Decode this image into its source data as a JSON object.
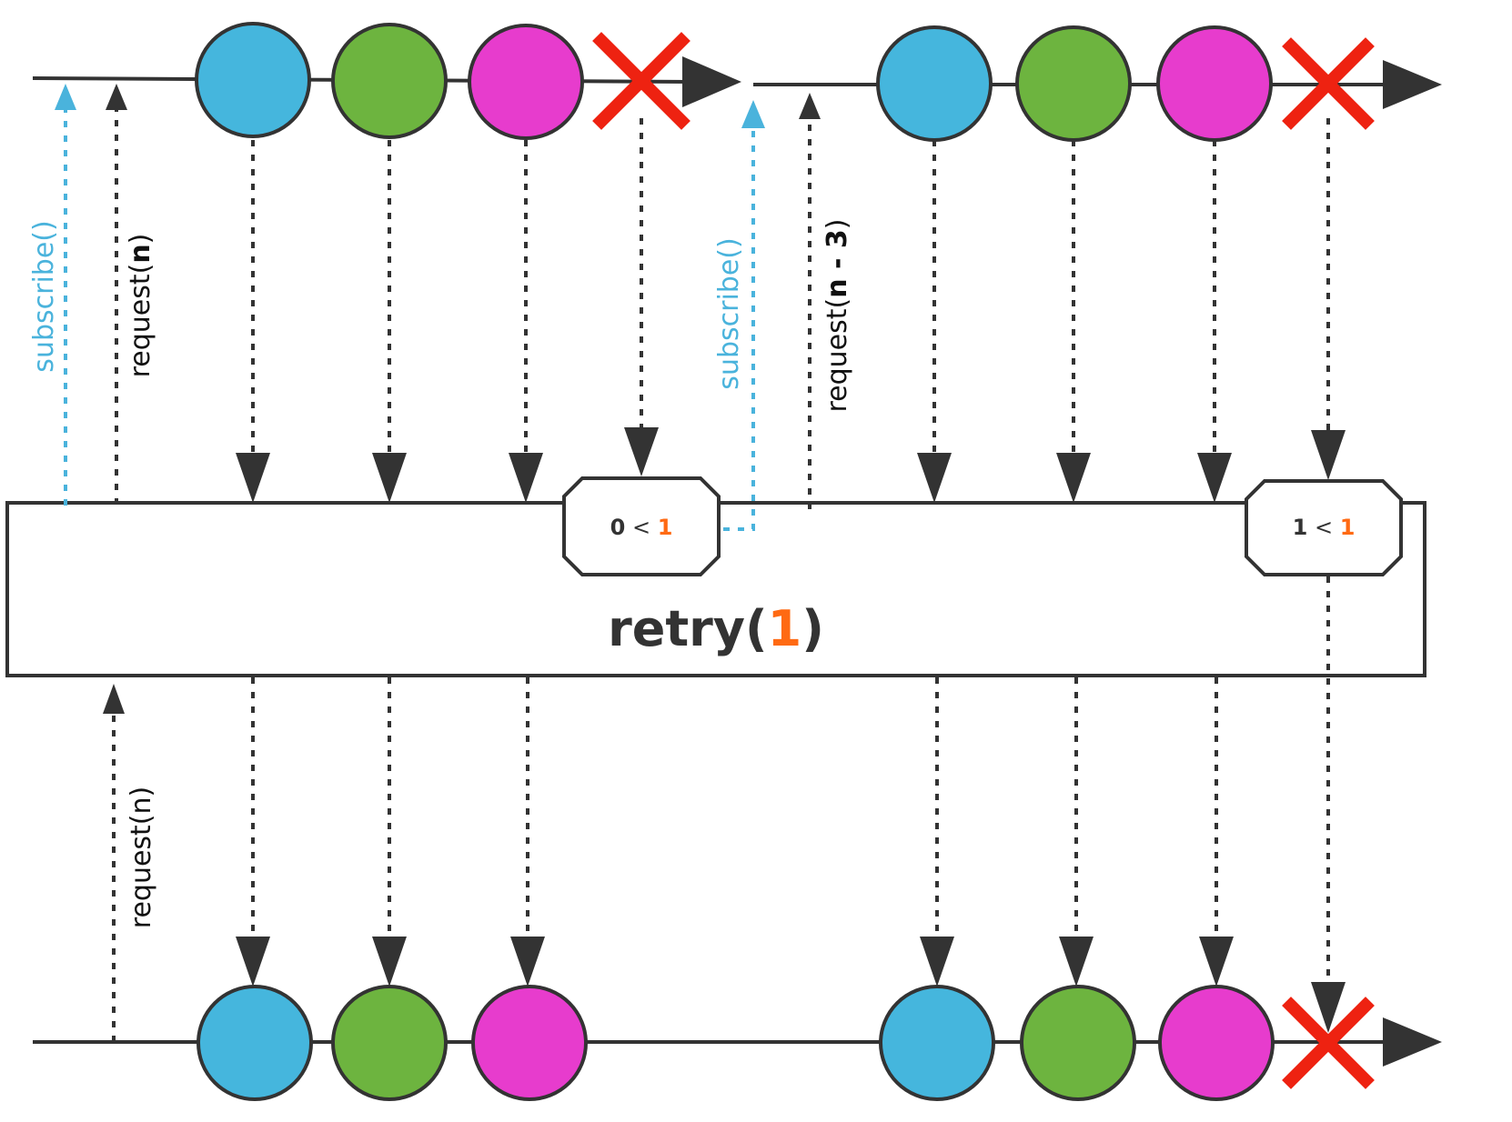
{
  "operator": {
    "name": "retry",
    "open": "(",
    "arg": "1",
    "close": ")"
  },
  "signals": {
    "subscribe_1": "subscribe()",
    "request_1_prefix": "request(",
    "request_1_arg": "n",
    "request_1_suffix": ")",
    "subscribe_2": "subscribe()",
    "request_2_prefix": "request(",
    "request_2_arg": "n - 3",
    "request_2_suffix": ")",
    "request_out": "request(n)"
  },
  "badges": [
    {
      "left": "0",
      "op": "<",
      "right": "1"
    },
    {
      "left": "1",
      "op": "<",
      "right": "1"
    }
  ],
  "colors": {
    "line": "#333333",
    "subscribe": "#4ab3dc",
    "blue": "#45b6dd",
    "green": "#6db43f",
    "magenta": "#e73ccd",
    "error": "#ee2211",
    "accent": "#ff6a13"
  },
  "marbles": {
    "upstream_1": [
      "blue",
      "green",
      "magenta",
      "error"
    ],
    "upstream_2": [
      "blue",
      "green",
      "magenta",
      "error"
    ],
    "downstream": [
      "blue",
      "green",
      "magenta",
      "blue",
      "green",
      "magenta",
      "error"
    ]
  }
}
